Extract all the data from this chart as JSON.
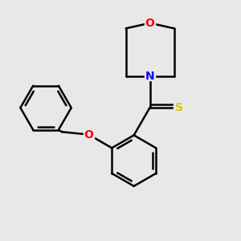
{
  "bg_color": "#e8e8e8",
  "bond_color": "#000000",
  "bond_width": 1.8,
  "atom_colors": {
    "O": "#ff0000",
    "N": "#0000ff",
    "S": "#cccc00"
  },
  "font_size": 10,
  "ring_r": 0.095,
  "morph_r": 0.095
}
